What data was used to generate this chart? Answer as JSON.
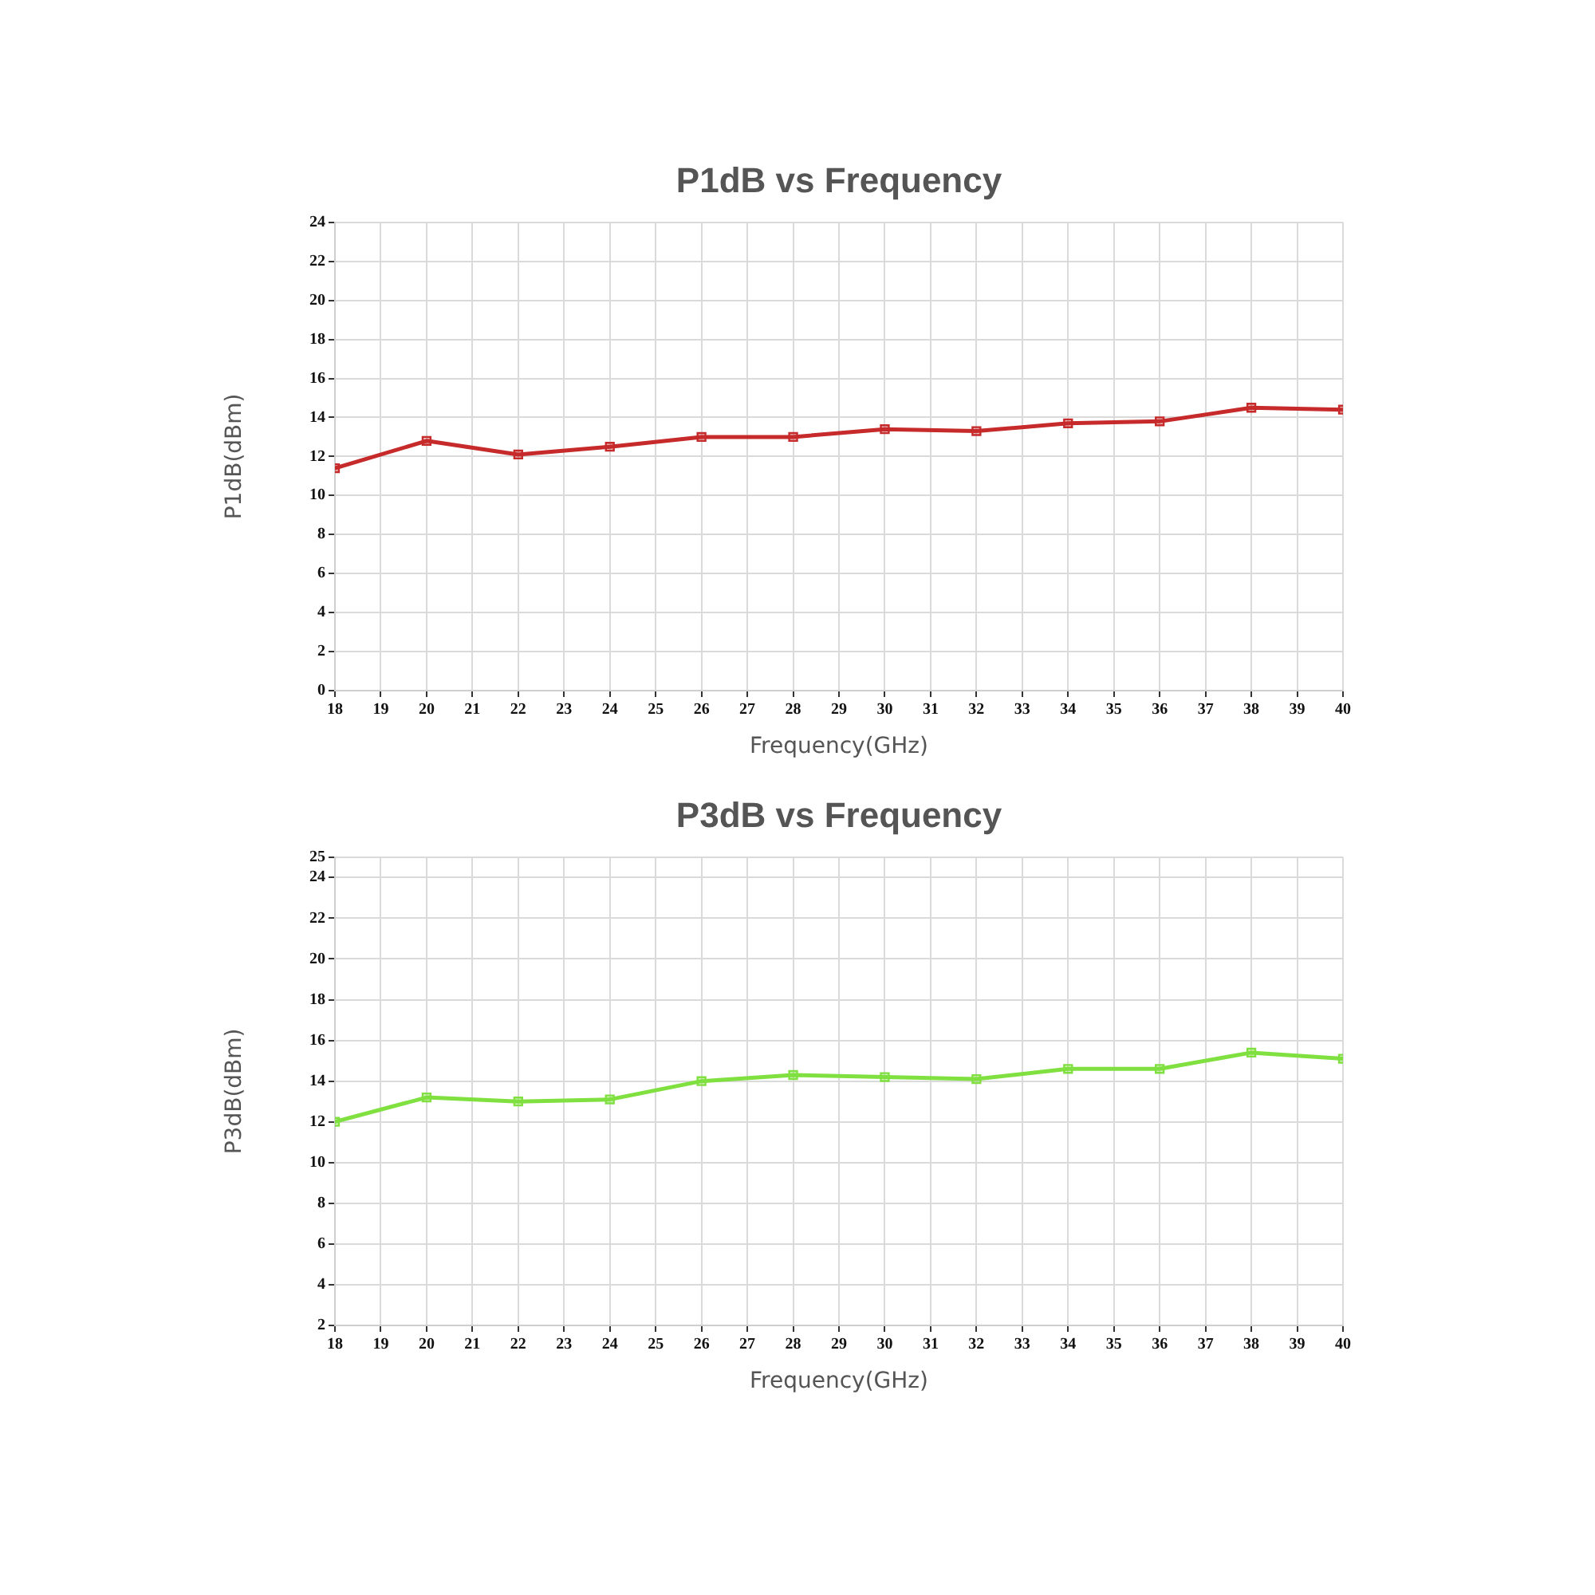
{
  "chart_data": [
    {
      "type": "line",
      "title": "P1dB vs Frequency",
      "xlabel": "Frequency(GHz)",
      "ylabel": "P1dB(dBm)",
      "x": [
        18,
        20,
        22,
        24,
        26,
        28,
        30,
        32,
        34,
        36,
        38,
        40
      ],
      "series": [
        {
          "color": "#c62a2a",
          "values": [
            11.4,
            12.8,
            12.1,
            12.5,
            13.0,
            13.0,
            13.4,
            13.3,
            13.7,
            13.8,
            14.5,
            14.4
          ]
        }
      ],
      "xlim": [
        18,
        40
      ],
      "xticks": [
        18,
        19,
        20,
        21,
        22,
        23,
        24,
        25,
        26,
        27,
        28,
        29,
        30,
        31,
        32,
        33,
        34,
        35,
        36,
        37,
        38,
        39,
        40
      ],
      "ylim": [
        0,
        24
      ],
      "yticks": [
        0,
        2,
        4,
        6,
        8,
        10,
        12,
        14,
        16,
        18,
        20,
        22,
        24
      ],
      "grid": true,
      "marker": "square"
    },
    {
      "type": "line",
      "title": "P3dB vs Frequency",
      "xlabel": "Frequency(GHz)",
      "ylabel": "P3dB(dBm)",
      "x": [
        18,
        20,
        22,
        24,
        26,
        28,
        30,
        32,
        34,
        36,
        38,
        40
      ],
      "series": [
        {
          "color": "#7fe040",
          "values": [
            12.0,
            13.2,
            13.0,
            13.1,
            14.0,
            14.3,
            14.2,
            14.1,
            14.6,
            14.6,
            15.4,
            15.1
          ]
        }
      ],
      "xlim": [
        18,
        40
      ],
      "xticks": [
        18,
        19,
        20,
        21,
        22,
        23,
        24,
        25,
        26,
        27,
        28,
        29,
        30,
        31,
        32,
        33,
        34,
        35,
        36,
        37,
        38,
        39,
        40
      ],
      "ylim": [
        2,
        25
      ],
      "yticks": [
        2,
        4,
        6,
        8,
        10,
        12,
        14,
        16,
        18,
        20,
        22,
        24,
        25
      ],
      "grid": true,
      "marker": "square"
    }
  ]
}
